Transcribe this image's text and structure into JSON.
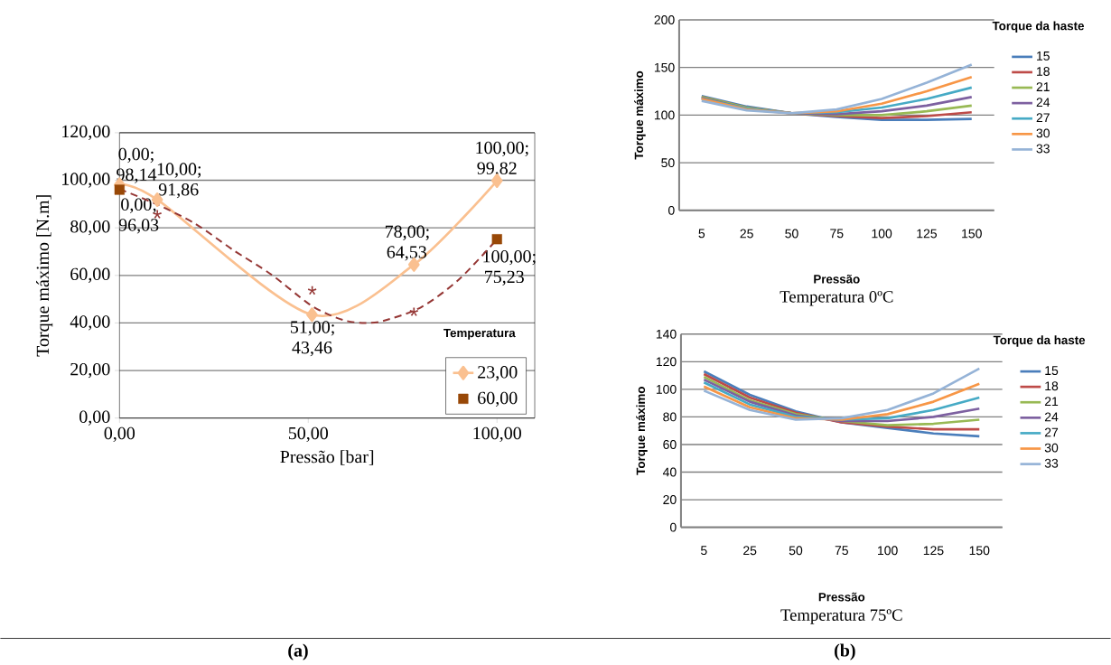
{
  "chart_data": [
    {
      "type": "line",
      "xlabel": "Pressão [bar]",
      "ylabel": "Torque máximo [N.m]",
      "legend_title": "Temperatura",
      "legend": "bottom right",
      "grid": "y",
      "xlim": [
        0,
        110
      ],
      "ylim": [
        0,
        120
      ],
      "xticks": [
        {
          "value": 0,
          "label": "0,00"
        },
        {
          "value": 50,
          "label": "50,00"
        },
        {
          "value": 100,
          "label": "100,00"
        }
      ],
      "yticks": [
        {
          "value": 0,
          "label": "0,00"
        },
        {
          "value": 20,
          "label": "20,00"
        },
        {
          "value": 40,
          "label": "40,00"
        },
        {
          "value": 60,
          "label": "60,00"
        },
        {
          "value": 80,
          "label": "80,00"
        },
        {
          "value": 100,
          "label": "100,00"
        },
        {
          "value": 120,
          "label": "120,00"
        }
      ],
      "annotations": [
        "*",
        "*",
        "*",
        "(a)"
      ],
      "series": [
        {
          "name": "23,00",
          "type": "line",
          "marker": "diamond",
          "color": "#fac090",
          "x": [
            0,
            10,
            51,
            78,
            100
          ],
          "values": [
            98.14,
            91.86,
            43.46,
            64.53,
            99.82
          ],
          "value_labels": [
            "0,00; 98,14",
            "10,00; 91,86",
            "51,00; 43,46",
            "78,00; 64,53",
            "100,00; 99,82"
          ]
        },
        {
          "name": "60,00",
          "type": "scatter",
          "marker": "square",
          "color": "#984807",
          "x": [
            0,
            100
          ],
          "values": [
            96.03,
            75.23
          ],
          "value_labels": [
            "0,00; 96,03",
            "100,00; 75,23"
          ]
        },
        {
          "type": "line",
          "line_style": "dashed",
          "marker": "none",
          "color": "#953735",
          "x": [
            0,
            10,
            20,
            30,
            40,
            50,
            55,
            60,
            65,
            70,
            80,
            90,
            100
          ],
          "values": [
            96.3,
            89.8,
            81.8,
            70.8,
            60.6,
            48.2,
            43.8,
            40.9,
            40,
            40.9,
            46.7,
            58.4,
            75.2
          ]
        }
      ]
    },
    {
      "type": "line",
      "title": "Temperatura 0ºC",
      "xlabel": "Pressão",
      "ylabel": "Torque máximo",
      "legend_title": "Torque da haste",
      "legend": "right",
      "grid": "y",
      "marker": "none",
      "categories": [
        "5",
        "25",
        "50",
        "75",
        "100",
        "125",
        "150"
      ],
      "ylim": [
        0,
        200
      ],
      "yticks": [
        0,
        50,
        100,
        150,
        200
      ],
      "series": [
        {
          "name": "15",
          "color": "#4a7ebb",
          "values": [
            120,
            109,
            102,
            98,
            95,
            95,
            96
          ]
        },
        {
          "name": "18",
          "color": "#be4b48",
          "values": [
            119,
            108,
            102,
            99,
            97,
            99,
            103
          ]
        },
        {
          "name": "21",
          "color": "#98b954",
          "values": [
            119,
            108,
            102,
            100,
            100,
            104,
            110
          ]
        },
        {
          "name": "24",
          "color": "#7d60a0",
          "values": [
            118,
            107,
            102,
            101,
            104,
            110,
            119
          ]
        },
        {
          "name": "27",
          "color": "#46aac5",
          "values": [
            117,
            107,
            102,
            103,
            108,
            117,
            129
          ]
        },
        {
          "name": "30",
          "color": "#f79646",
          "values": [
            117,
            106,
            102,
            104,
            112,
            125,
            140
          ]
        },
        {
          "name": "33",
          "color": "#95b3d7",
          "values": [
            115,
            105,
            102,
            106,
            117,
            134,
            153
          ]
        }
      ]
    },
    {
      "type": "line",
      "title": "Temperatura 75ºC",
      "xlabel": "Pressão",
      "ylabel": "Torque máximo",
      "legend_title": "Torque da haste",
      "legend": "right",
      "grid": "y",
      "marker": "none",
      "categories": [
        "5",
        "25",
        "50",
        "75",
        "100",
        "125",
        "150"
      ],
      "ylim": [
        0,
        140
      ],
      "yticks": [
        0,
        20,
        40,
        60,
        80,
        100,
        120,
        140
      ],
      "annotations": [
        "(b)"
      ],
      "series": [
        {
          "name": "15",
          "color": "#4a7ebb",
          "values": [
            113,
            96,
            84,
            76,
            72,
            68,
            66
          ]
        },
        {
          "name": "18",
          "color": "#be4b48",
          "values": [
            111,
            94,
            83,
            76,
            73,
            71,
            71
          ]
        },
        {
          "name": "21",
          "color": "#98b954",
          "values": [
            109,
            92,
            82,
            77,
            74,
            75,
            78
          ]
        },
        {
          "name": "24",
          "color": "#7d60a0",
          "values": [
            107,
            91,
            81,
            77,
            77,
            80,
            86
          ]
        },
        {
          "name": "27",
          "color": "#46aac5",
          "values": [
            105,
            89,
            80,
            78,
            79,
            85,
            94
          ]
        },
        {
          "name": "30",
          "color": "#f79646",
          "values": [
            102,
            87,
            79,
            78,
            82,
            91,
            104
          ]
        },
        {
          "name": "33",
          "color": "#95b3d7",
          "values": [
            99,
            85,
            78,
            79,
            85,
            97,
            115
          ]
        }
      ]
    }
  ]
}
